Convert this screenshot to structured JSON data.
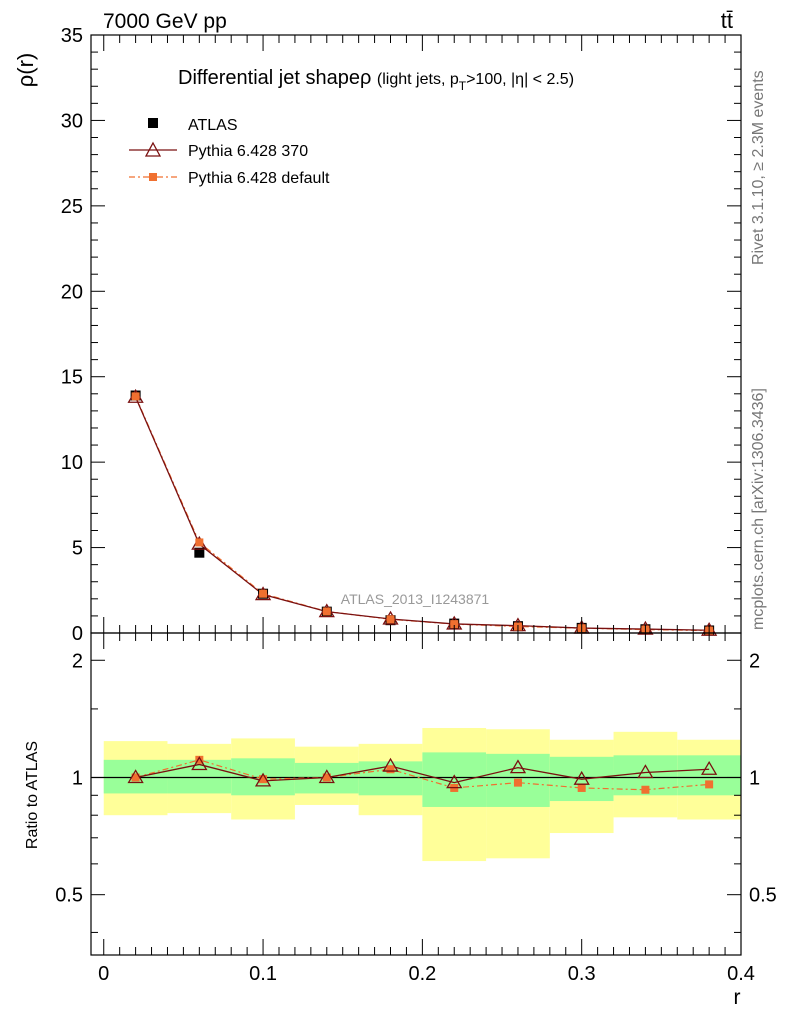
{
  "header": {
    "energy": "7000 GeV pp",
    "process": "tt̄"
  },
  "side_labels": {
    "rivet": "Rivet 3.1.10, ≥ 2.3M events",
    "mcplots": "mcplots.cern.ch [arXiv:1306.3436]"
  },
  "chart_data": {
    "type": "line",
    "title": "Differential jet shape",
    "title_detail": {
      "rho": "ρ",
      "light_jets": "(light jets, p",
      "sub_T": "T",
      "pt_rest": ">100, |η| < 2.5)"
    },
    "watermark": "ATLAS_2013_I1243871",
    "xlabel": "r",
    "ylabel": "ρ(r)",
    "ratio_ylabel": "Ratio to ATLAS",
    "xlim": [
      -0.008,
      0.4
    ],
    "ylim": [
      0,
      35
    ],
    "ratio_ylim": [
      0.35,
      2.35
    ],
    "x_ticks": [
      "0",
      "0.1",
      "0.2",
      "0.3",
      "0.4"
    ],
    "y_ticks": [
      "0",
      "5",
      "10",
      "15",
      "20",
      "25",
      "30",
      "35"
    ],
    "ratio_ticks": [
      "0.5",
      "1",
      "2"
    ],
    "bin_edges": [
      0.0,
      0.04,
      0.08,
      0.12,
      0.16,
      0.2,
      0.24,
      0.28,
      0.32,
      0.36,
      0.4
    ],
    "x": [
      0.02,
      0.06,
      0.1,
      0.14,
      0.18,
      0.22,
      0.26,
      0.3,
      0.34,
      0.38
    ],
    "series": [
      {
        "name": "ATLAS",
        "color": "#000000",
        "values": [
          13.9,
          4.7,
          2.3,
          1.25,
          0.75,
          0.55,
          0.4,
          0.3,
          0.22,
          0.15
        ]
      },
      {
        "name": "Pythia 6.428 370",
        "color": "#7a1010",
        "values": [
          13.8,
          5.2,
          2.25,
          1.25,
          0.82,
          0.53,
          0.43,
          0.29,
          0.23,
          0.16
        ]
      },
      {
        "name": "Pythia 6.428 default",
        "color": "#f07030",
        "values": [
          13.85,
          5.3,
          2.3,
          1.26,
          0.8,
          0.52,
          0.38,
          0.28,
          0.2,
          0.14
        ]
      }
    ],
    "ratio": {
      "reference": 1.0,
      "series": [
        {
          "name": "Pythia 6.428 370",
          "values": [
            1.0,
            1.08,
            0.98,
            1.0,
            1.07,
            0.97,
            1.06,
            0.99,
            1.03,
            1.05
          ]
        },
        {
          "name": "Pythia 6.428 default",
          "values": [
            1.0,
            1.11,
            0.99,
            1.0,
            1.05,
            0.94,
            0.97,
            0.94,
            0.93,
            0.96
          ]
        }
      ],
      "band_inner": [
        [
          0.91,
          1.11
        ],
        [
          0.91,
          1.11
        ],
        [
          0.9,
          1.12
        ],
        [
          0.91,
          1.09
        ],
        [
          0.9,
          1.1
        ],
        [
          0.84,
          1.16
        ],
        [
          0.84,
          1.15
        ],
        [
          0.87,
          1.13
        ],
        [
          0.9,
          1.14
        ],
        [
          0.9,
          1.14
        ]
      ],
      "band_outer": [
        [
          0.8,
          1.24
        ],
        [
          0.81,
          1.22
        ],
        [
          0.78,
          1.26
        ],
        [
          0.85,
          1.2
        ],
        [
          0.8,
          1.22
        ],
        [
          0.61,
          1.34
        ],
        [
          0.62,
          1.33
        ],
        [
          0.72,
          1.25
        ],
        [
          0.79,
          1.31
        ],
        [
          0.78,
          1.25
        ]
      ],
      "band_inner_color": "#99ff99",
      "band_outer_color": "#ffff99"
    }
  }
}
